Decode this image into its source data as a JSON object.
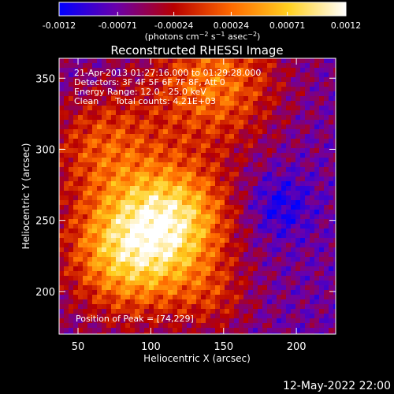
{
  "chart_data": {
    "type": "heatmap",
    "title": "Reconstructed RHESSI Image",
    "xlabel": "Heliocentric X (arcsec)",
    "ylabel": "Heliocentric Y (arcsec)",
    "xlim": [
      37,
      227
    ],
    "ylim": [
      170,
      364
    ],
    "x_ticks": [
      50,
      100,
      150,
      200
    ],
    "y_ticks": [
      200,
      250,
      300,
      350
    ],
    "colorbar": {
      "range": [
        -0.0012,
        0.0012
      ],
      "ticks": [
        "-0.0012",
        "-0.00071",
        "-0.00024",
        "0.00024",
        "0.00071",
        "0.0012"
      ],
      "label_parts": [
        "(photons cm",
        "−2",
        " s",
        "−1",
        " asec",
        "−2",
        ")"
      ],
      "colormap": [
        "#0000ff",
        "#6a00aa",
        "#b80000",
        "#ff6a00",
        "#ffd020",
        "#ffffff"
      ]
    },
    "annotations": [
      "21-Apr-2013 01:27:16.000 to 01:29:28.000",
      "Detectors: 3F 4F 5F 6F 7F 8F, Att 0",
      "Energy Range: 12.0 - 25.0 keV",
      "Clean      Total counts: 4.21E+03"
    ],
    "peak_label": "Position of Peak = [74,229]",
    "peak": [
      74,
      229
    ]
  },
  "footer": {
    "timestamp": "12-May-2022 22:00"
  }
}
